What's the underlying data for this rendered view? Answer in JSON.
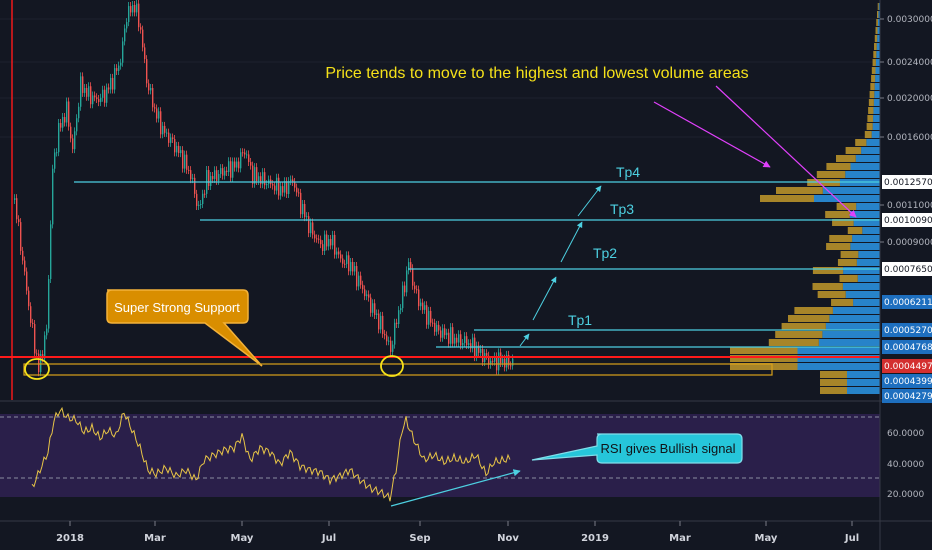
{
  "chart_data": [
    {
      "type": "candlestick",
      "title": "",
      "x_ticks": [
        "2018",
        "Mar",
        "May",
        "Jul",
        "Sep",
        "Nov",
        "2019",
        "Mar",
        "May",
        "Jul"
      ],
      "y_ticks": [
        "0.0030000",
        "0.0024000",
        "0.0020000",
        "0.0016000",
        "0.0012570",
        "0.0011000",
        "0.0010090",
        "0.0009000",
        "0.0007650",
        "0.0006211",
        "0.0005270",
        "0.0004768",
        "0.0004497",
        "0.0004399",
        "0.0004279"
      ],
      "y_scale": "log",
      "price_labels": [
        {
          "value": "0.0012570",
          "color": "#ffffff"
        },
        {
          "value": "0.0010090",
          "color": "#ffffff"
        },
        {
          "value": "0.0007650",
          "color": "#ffffff"
        },
        {
          "value": "0.0006211",
          "color": "#1e6fbf"
        },
        {
          "value": "0.0005270",
          "color": "#1e6fbf"
        },
        {
          "value": "0.0004768",
          "color": "#1e6fbf"
        },
        {
          "value": "0.0004497",
          "color": "#d32f2f"
        },
        {
          "value": "0.0004399",
          "color": "#1e6fbf"
        },
        {
          "value": "0.0004279",
          "color": "#1e6fbf"
        }
      ],
      "targets": [
        {
          "label": "Tp1",
          "value": 0.000527
        },
        {
          "label": "Tp2",
          "value": 0.000765
        },
        {
          "label": "Tp3",
          "value": 0.001009
        },
        {
          "label": "Tp4",
          "value": 0.001257
        }
      ],
      "support_level": 0.0004497,
      "annotations": {
        "volume_note": "Price tends to move to the highest and lowest volume areas",
        "support_note": "Super Strong Support"
      },
      "colors": {
        "up": "#26a69a",
        "down": "#ef5350",
        "target_line": "#4dd0e1",
        "support": "#ff1a1a",
        "volume_up": "#2a8fdc",
        "volume_down": "#b8912a"
      }
    },
    {
      "type": "line",
      "name": "RSI",
      "y_ticks": [
        "60.0000",
        "40.0000",
        "20.0000"
      ],
      "levels": [
        70,
        30
      ],
      "annotation": "RSI gives Bullish signal",
      "colors": {
        "line": "#e8c547",
        "band": "#2a1f4a"
      }
    }
  ]
}
